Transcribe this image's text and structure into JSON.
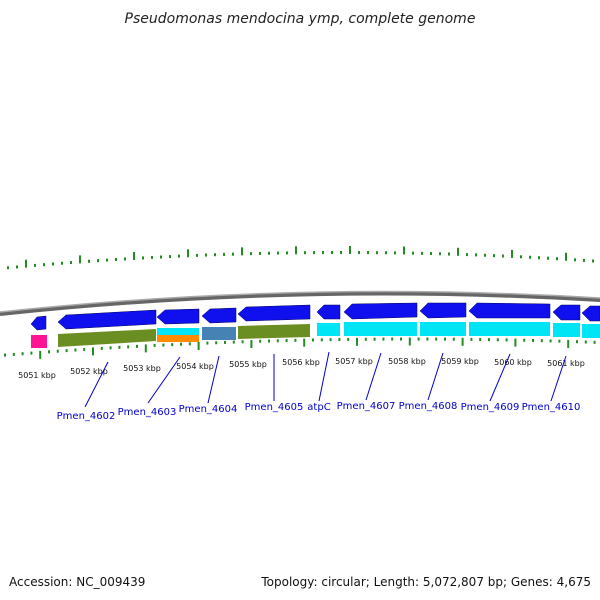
{
  "title": "Pseudomonas mendocina ymp, complete genome",
  "accession": "Accession: NC_009439",
  "summary": "Topology: circular; Length: 5,072,807 bp; Genes: 4,675",
  "colors": {
    "backbone": "#888888",
    "cds_forward": "#1010ee",
    "tick": "#228b22",
    "label": "#0000cc",
    "category_cyan": "#00e5f5",
    "category_olive": "#6b8e23",
    "category_magenta": "#ff1493",
    "category_orange": "#ff8c00",
    "category_steel": "#4682b4"
  },
  "kbp_labels": [
    "5051 kbp",
    "5052 kbp",
    "5053 kbp",
    "5054 kbp",
    "5055 kbp",
    "5056 kbp",
    "5057 kbp",
    "5058 kbp",
    "5059 kbp",
    "5060 kbp",
    "5061 kbp"
  ],
  "gene_labels": [
    "Pmen_4602",
    "Pmen_4603",
    "Pmen_4604",
    "Pmen_4605",
    "atpC",
    "Pmen_4607",
    "Pmen_4608",
    "Pmen_4609",
    "Pmen_4610"
  ]
}
